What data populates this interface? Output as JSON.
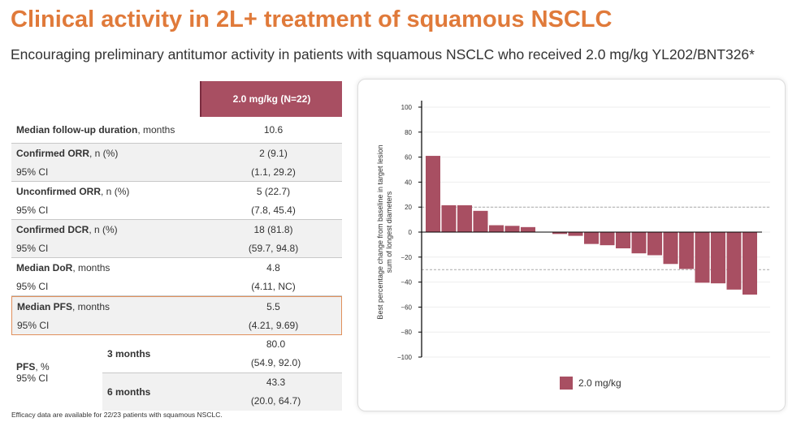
{
  "title": "Clinical activity in 2L+ treatment of squamous NSCLC",
  "subtitle": "Encouraging preliminary antitumor activity in patients with squamous NSCLC who received 2.0 mg/kg YL202/BNT326*",
  "table": {
    "header": "2.0 mg/kg (N=22)",
    "followup": {
      "label_bold": "Median follow-up duration",
      "label_rest": ", months",
      "value": "10.6"
    },
    "groups": [
      {
        "label_bold": "Confirmed ORR",
        "label_rest": ", n (%)",
        "value": "2 (9.1)",
        "ci_label": "95% CI",
        "ci": "(1.1, 29.2)"
      },
      {
        "label_bold": "Unconfirmed ORR",
        "label_rest": ", n (%)",
        "value": "5 (22.7)",
        "ci_label": "95% CI",
        "ci": "(7.8, 45.4)"
      },
      {
        "label_bold": "Confirmed DCR",
        "label_rest": ", n (%)",
        "value": "18 (81.8)",
        "ci_label": "95% CI",
        "ci": "(59.7, 94.8)"
      },
      {
        "label_bold": "Median DoR",
        "label_rest": ", months",
        "value": "4.8",
        "ci_label": "95% CI",
        "ci": "(4.11, NC)"
      },
      {
        "label_bold": "Median PFS",
        "label_rest": ", months",
        "value": "5.5",
        "ci_label": "95% CI",
        "ci": "(4.21, 9.69)"
      }
    ],
    "pfs": {
      "label_bold": "PFS",
      "label_rest": ", %",
      "ci_label": "95% CI",
      "rows": [
        {
          "label": "3 months",
          "value": "80.0",
          "ci": "(54.9, 92.0)"
        },
        {
          "label": "6 months",
          "value": "43.3",
          "ci": "(20.0, 64.7)"
        }
      ]
    }
  },
  "footnote": "Efficacy data are available for 22/23 patients with squamous NSCLC.",
  "chart_data": {
    "type": "bar",
    "ylabel": "Best percentage change from baseline in target lesion sum of longest diameters",
    "ylim": [
      -100,
      100
    ],
    "yticks": [
      "100",
      "80",
      "60",
      "40",
      "20",
      "0",
      "−20",
      "−40",
      "−60",
      "−80",
      "−100"
    ],
    "reference_lines": [
      20,
      -30
    ],
    "grid": true,
    "legend_position": "bottom",
    "series": [
      {
        "name": "2.0 mg/kg",
        "color": "#a84f62",
        "values": [
          61,
          21.5,
          21.5,
          17,
          5.5,
          5,
          4,
          0,
          -1.5,
          -3,
          -9.5,
          -10.5,
          -13,
          -17,
          -18.5,
          -25.5,
          -29.5,
          -40.5,
          -41,
          -46,
          -50
        ]
      }
    ]
  }
}
